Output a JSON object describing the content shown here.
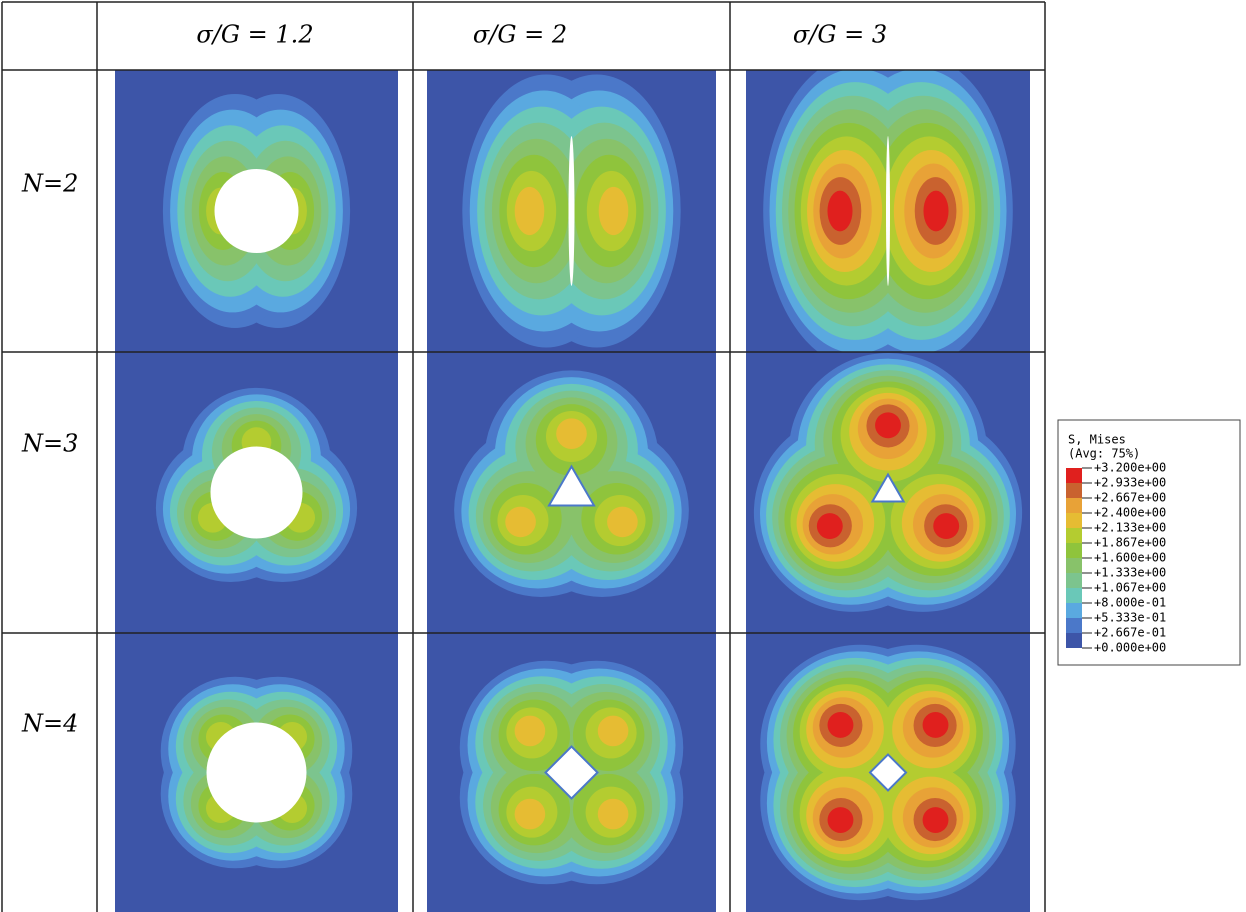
{
  "table": {
    "header": [
      "σ/G = 1.2",
      "σ/G = 2",
      "σ/G = 3"
    ],
    "rows": [
      "N=2",
      "N=3",
      "N=4"
    ]
  },
  "legend": {
    "title": "S, Mises",
    "subtitle": "(Avg: 75%)",
    "labels": [
      "+3.200e+00",
      "+2.933e+00",
      "+2.667e+00",
      "+2.400e+00",
      "+2.133e+00",
      "+1.867e+00",
      "+1.600e+00",
      "+1.333e+00",
      "+1.067e+00",
      "+8.000e-01",
      "+5.333e-01",
      "+2.667e-01",
      "+0.000e+00"
    ],
    "colors": [
      "#e0201e",
      "#c9622f",
      "#e8a237",
      "#e6bc33",
      "#b4cc30",
      "#8fc43c",
      "#88c26a",
      "#7cc48e",
      "#6ac8b8",
      "#5aa9e0",
      "#4b78c9",
      "#3d55a8"
    ]
  }
}
